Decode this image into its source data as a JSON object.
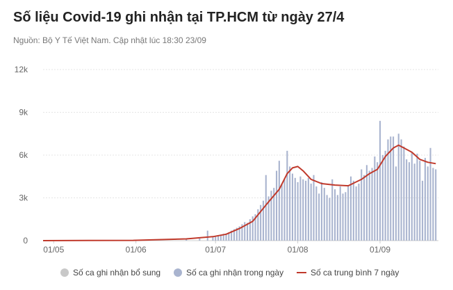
{
  "title": "Số liệu Covid-19 ghi nhận tại TP.HCM từ ngày 27/4",
  "subtitle": "Nguồn: Bộ Y Tế Việt Nam. Cập nhật lúc 18:30 23/09",
  "colors": {
    "bar_daily": "#a9b4cf",
    "bar_supplement": "#c8c8c8",
    "avg_line": "#c0392b",
    "grid": "#e4e4e4"
  },
  "chart_data": {
    "type": "bar",
    "y_ticks": [
      0,
      3000,
      6000,
      9000,
      12000
    ],
    "y_tick_labels": [
      "0",
      "3k",
      "6k",
      "9k",
      "12k"
    ],
    "ylim": [
      0,
      12000
    ],
    "x_ticks": [
      "2021-05-01",
      "2021-06-01",
      "2021-07-01",
      "2021-08-01",
      "2021-09-01"
    ],
    "x_tick_labels": [
      "01/05",
      "01/06",
      "01/07",
      "01/08",
      "01/09"
    ],
    "x_range": [
      "2021-04-27",
      "2021-09-23"
    ],
    "legend_position": "bottom",
    "series": [
      {
        "name": "Số ca ghi nhận bổ sung",
        "type": "bar",
        "points": []
      },
      {
        "name": "Số ca ghi nhận trong ngày",
        "type": "bar",
        "points": [
          [
            "2021-06-20",
            100
          ],
          [
            "2021-06-25",
            150
          ],
          [
            "2021-06-28",
            700
          ],
          [
            "2021-06-30",
            260
          ],
          [
            "2021-07-01",
            300
          ],
          [
            "2021-07-02",
            350
          ],
          [
            "2021-07-03",
            420
          ],
          [
            "2021-07-04",
            480
          ],
          [
            "2021-07-05",
            500
          ],
          [
            "2021-07-06",
            580
          ],
          [
            "2021-07-07",
            700
          ],
          [
            "2021-07-08",
            800
          ],
          [
            "2021-07-09",
            900
          ],
          [
            "2021-07-10",
            1000
          ],
          [
            "2021-07-11",
            1150
          ],
          [
            "2021-07-12",
            1300
          ],
          [
            "2021-07-13",
            1250
          ],
          [
            "2021-07-14",
            1500
          ],
          [
            "2021-07-15",
            1700
          ],
          [
            "2021-07-16",
            1850
          ],
          [
            "2021-07-17",
            2200
          ],
          [
            "2021-07-18",
            2500
          ],
          [
            "2021-07-19",
            2800
          ],
          [
            "2021-07-20",
            4600
          ],
          [
            "2021-07-21",
            3100
          ],
          [
            "2021-07-22",
            3500
          ],
          [
            "2021-07-23",
            3700
          ],
          [
            "2021-07-24",
            4900
          ],
          [
            "2021-07-25",
            5600
          ],
          [
            "2021-07-26",
            4000
          ],
          [
            "2021-07-27",
            4300
          ],
          [
            "2021-07-28",
            6300
          ],
          [
            "2021-07-29",
            5200
          ],
          [
            "2021-07-30",
            4700
          ],
          [
            "2021-07-31",
            4400
          ],
          [
            "2021-08-01",
            4100
          ],
          [
            "2021-08-02",
            4500
          ],
          [
            "2021-08-03",
            4300
          ],
          [
            "2021-08-04",
            4200
          ],
          [
            "2021-08-05",
            4400
          ],
          [
            "2021-08-06",
            4000
          ],
          [
            "2021-08-07",
            4600
          ],
          [
            "2021-08-08",
            3800
          ],
          [
            "2021-08-09",
            3300
          ],
          [
            "2021-08-10",
            4100
          ],
          [
            "2021-08-11",
            3700
          ],
          [
            "2021-08-12",
            3200
          ],
          [
            "2021-08-13",
            3000
          ],
          [
            "2021-08-14",
            4300
          ],
          [
            "2021-08-15",
            3600
          ],
          [
            "2021-08-16",
            3200
          ],
          [
            "2021-08-17",
            3800
          ],
          [
            "2021-08-18",
            3300
          ],
          [
            "2021-08-19",
            3400
          ],
          [
            "2021-08-20",
            3900
          ],
          [
            "2021-08-21",
            4500
          ],
          [
            "2021-08-22",
            4200
          ],
          [
            "2021-08-23",
            3800
          ],
          [
            "2021-08-24",
            4000
          ],
          [
            "2021-08-25",
            5000
          ],
          [
            "2021-08-26",
            4600
          ],
          [
            "2021-08-27",
            5300
          ],
          [
            "2021-08-28",
            4900
          ],
          [
            "2021-08-29",
            5100
          ],
          [
            "2021-08-30",
            5900
          ],
          [
            "2021-08-31",
            5500
          ],
          [
            "2021-09-01",
            8400
          ],
          [
            "2021-09-02",
            6000
          ],
          [
            "2021-09-03",
            6300
          ],
          [
            "2021-09-04",
            7100
          ],
          [
            "2021-09-05",
            7300
          ],
          [
            "2021-09-06",
            7300
          ],
          [
            "2021-09-07",
            5200
          ],
          [
            "2021-09-08",
            7500
          ],
          [
            "2021-09-09",
            7100
          ],
          [
            "2021-09-10",
            6600
          ],
          [
            "2021-09-11",
            5700
          ],
          [
            "2021-09-12",
            5500
          ],
          [
            "2021-09-13",
            6200
          ],
          [
            "2021-09-14",
            5400
          ],
          [
            "2021-09-15",
            6100
          ],
          [
            "2021-09-16",
            5600
          ],
          [
            "2021-09-17",
            4200
          ],
          [
            "2021-09-18",
            5800
          ],
          [
            "2021-09-19",
            5200
          ],
          [
            "2021-09-20",
            6500
          ],
          [
            "2021-09-21",
            5100
          ],
          [
            "2021-09-22",
            5000
          ]
        ]
      },
      {
        "name": "Số ca trung bình 7 ngày",
        "type": "line",
        "points": [
          [
            "2021-04-27",
            0
          ],
          [
            "2021-05-31",
            20
          ],
          [
            "2021-06-20",
            120
          ],
          [
            "2021-06-30",
            280
          ],
          [
            "2021-07-05",
            450
          ],
          [
            "2021-07-10",
            850
          ],
          [
            "2021-07-15",
            1350
          ],
          [
            "2021-07-20",
            2500
          ],
          [
            "2021-07-25",
            3600
          ],
          [
            "2021-07-28",
            4700
          ],
          [
            "2021-07-30",
            5100
          ],
          [
            "2021-08-01",
            5200
          ],
          [
            "2021-08-03",
            4900
          ],
          [
            "2021-08-06",
            4300
          ],
          [
            "2021-08-10",
            4000
          ],
          [
            "2021-08-15",
            3900
          ],
          [
            "2021-08-20",
            3850
          ],
          [
            "2021-08-25",
            4300
          ],
          [
            "2021-08-28",
            4700
          ],
          [
            "2021-08-31",
            5000
          ],
          [
            "2021-09-03",
            5900
          ],
          [
            "2021-09-06",
            6500
          ],
          [
            "2021-09-08",
            6700
          ],
          [
            "2021-09-10",
            6500
          ],
          [
            "2021-09-13",
            6200
          ],
          [
            "2021-09-16",
            5700
          ],
          [
            "2021-09-19",
            5500
          ],
          [
            "2021-09-22",
            5400
          ]
        ]
      }
    ]
  }
}
